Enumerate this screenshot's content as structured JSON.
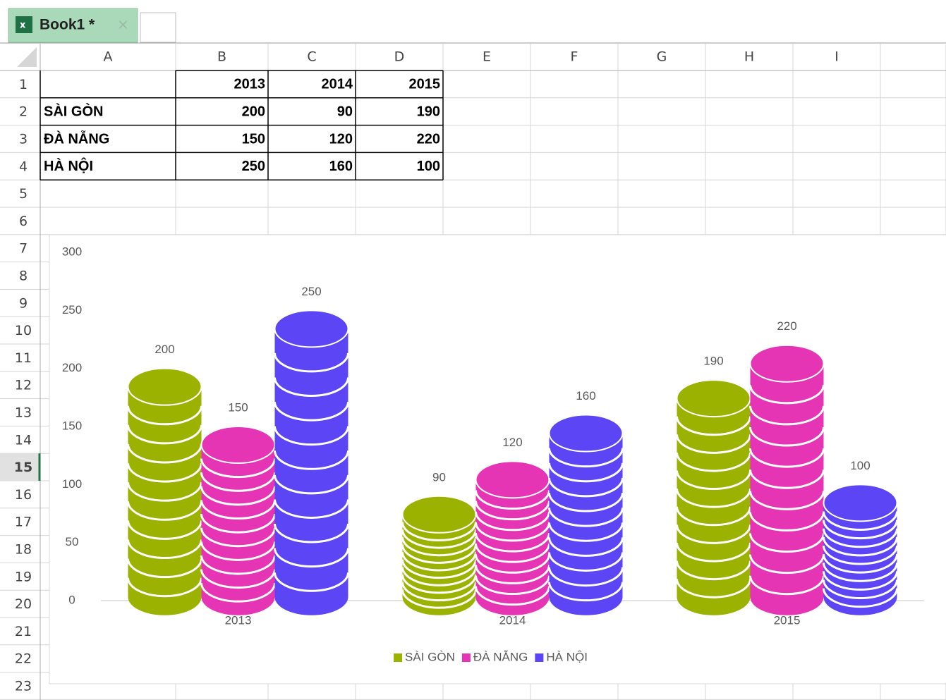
{
  "tab": {
    "title": "Book1 *"
  },
  "columns": [
    "A",
    "B",
    "C",
    "D",
    "E",
    "F",
    "G",
    "H",
    "I"
  ],
  "row_numbers": [
    1,
    2,
    3,
    4,
    5,
    6,
    7,
    8,
    9,
    10,
    11,
    12,
    13,
    14,
    15,
    16,
    17,
    18,
    19,
    20,
    21,
    22,
    23
  ],
  "selected_row": 15,
  "table": {
    "header": [
      2013,
      2014,
      2015
    ],
    "rows": [
      {
        "name": "SÀI GÒN",
        "values": [
          200,
          90,
          190
        ]
      },
      {
        "name": "ĐÀ NẴNG",
        "values": [
          150,
          120,
          220
        ]
      },
      {
        "name": "HÀ NỘI",
        "values": [
          250,
          160,
          100
        ]
      }
    ]
  },
  "chart_data": {
    "type": "cylinder-bar",
    "categories": [
      "2013",
      "2014",
      "2015"
    ],
    "series": [
      {
        "name": "SÀI GÒN",
        "color": "#9bb300",
        "values": [
          200,
          90,
          190
        ]
      },
      {
        "name": "ĐÀ NẴNG",
        "color": "#e535b5",
        "values": [
          150,
          120,
          220
        ]
      },
      {
        "name": "HÀ NỘI",
        "color": "#5b45f5",
        "values": [
          250,
          160,
          100
        ]
      }
    ],
    "ylim": [
      0,
      300
    ],
    "yticks": [
      0,
      50,
      100,
      150,
      200,
      250,
      300
    ],
    "data_labels": true,
    "legend": "bottom"
  }
}
